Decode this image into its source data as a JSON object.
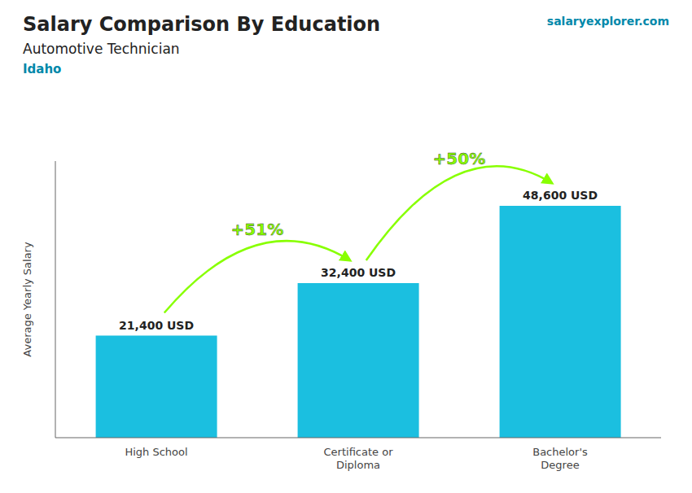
{
  "chart_data": {
    "type": "bar",
    "title": "Salary Comparison By Education",
    "subtitle": "Automotive Technician",
    "location": "Idaho",
    "source": "salaryexplorer.com",
    "ylabel": "Average Yearly Salary",
    "categories": [
      "High School",
      "Certificate or\nDiploma",
      "Bachelor's\nDegree"
    ],
    "values": [
      21400,
      32400,
      48600
    ],
    "value_labels": [
      "21,400 USD",
      "32,400 USD",
      "48,600 USD"
    ],
    "data_labels": true,
    "annotations": [
      {
        "text": "+51%",
        "color": "#88ff00"
      },
      {
        "text": "+50%",
        "color": "#88ff00"
      }
    ],
    "color": "#1bbfe0",
    "ylim": [
      0,
      58000
    ],
    "tick_labels": "x",
    "grid": false
  }
}
